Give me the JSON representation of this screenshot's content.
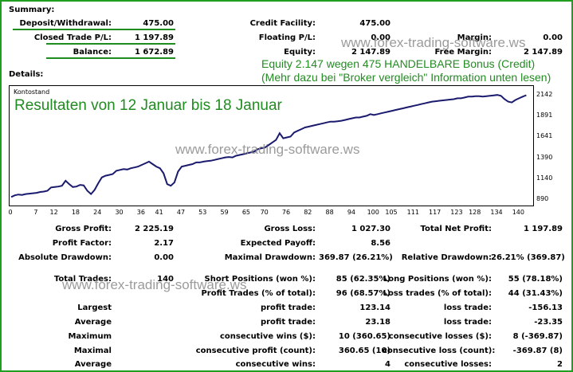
{
  "summary": {
    "title": "Summary:",
    "deposit_label": "Deposit/Withdrawal:",
    "deposit_value": "475.00",
    "closed_pl_label": "Closed Trade P/L:",
    "closed_pl_value": "1 197.89",
    "balance_label": "Balance:",
    "balance_value": "1 672.89",
    "credit_label": "Credit Facility:",
    "credit_value": "475.00",
    "floating_label": "Floating P/L:",
    "floating_value": "0.00",
    "equity_label": "Equity:",
    "equity_value": "2 147.89",
    "margin_label": "Margin:",
    "margin_value": "0.00",
    "free_margin_label": "Free Margin:",
    "free_margin_value": "2 147.89"
  },
  "notes": {
    "line1": "Equity 2.147 wegen 475 HANDELBARE Bonus (Credit)",
    "line2": "(Mehr dazu bei \"Broker vergleich\" Information unten lesen)"
  },
  "watermark": "www.forex-trading-software.ws",
  "details_title": "Details:",
  "chart": {
    "legend": "Kontostand",
    "headline": "Resultaten von 12 Januar bis 18 Januar",
    "line_color": "#1a1a6e"
  },
  "chart_data": {
    "type": "line",
    "series": [
      {
        "name": "Kontostand",
        "x": [
          0,
          1,
          2,
          3,
          4,
          5,
          6,
          7,
          8,
          9,
          10,
          11,
          12,
          13,
          14,
          15,
          16,
          17,
          18,
          19,
          20,
          21,
          22,
          23,
          24,
          25,
          26,
          27,
          28,
          29,
          30,
          31,
          32,
          33,
          34,
          35,
          36,
          37,
          38,
          39,
          40,
          41,
          42,
          43,
          44,
          45,
          46,
          47,
          48,
          49,
          50,
          51,
          52,
          53,
          54,
          55,
          56,
          57,
          58,
          59,
          60,
          61,
          62,
          63,
          64,
          65,
          66,
          67,
          68,
          69,
          70,
          71,
          72,
          73,
          74,
          75,
          76,
          77,
          78,
          79,
          80,
          81,
          82,
          83,
          84,
          85,
          86,
          87,
          88,
          89,
          90,
          91,
          92,
          93,
          94,
          95,
          96,
          97,
          98,
          99,
          100,
          101,
          102,
          103,
          104,
          105,
          106,
          107,
          108,
          109,
          110,
          111,
          112,
          113,
          114,
          115,
          116,
          117,
          118,
          119,
          120,
          121,
          122,
          123,
          124,
          125,
          126,
          127,
          128,
          129,
          130,
          131,
          132,
          133,
          134,
          135,
          136,
          137,
          138,
          139,
          140,
          141,
          142
        ],
        "y": [
          925,
          945,
          955,
          950,
          960,
          965,
          970,
          975,
          985,
          990,
          1000,
          1040,
          1045,
          1050,
          1060,
          1120,
          1080,
          1045,
          1050,
          1070,
          1065,
          1000,
          960,
          1010,
          1090,
          1160,
          1180,
          1190,
          1200,
          1240,
          1250,
          1260,
          1255,
          1270,
          1280,
          1290,
          1310,
          1330,
          1350,
          1320,
          1290,
          1270,
          1210,
          1080,
          1060,
          1100,
          1230,
          1290,
          1300,
          1310,
          1320,
          1340,
          1340,
          1350,
          1355,
          1360,
          1370,
          1380,
          1390,
          1400,
          1405,
          1400,
          1420,
          1430,
          1440,
          1450,
          1460,
          1470,
          1500,
          1510,
          1520,
          1550,
          1580,
          1610,
          1690,
          1630,
          1640,
          1650,
          1700,
          1720,
          1740,
          1760,
          1770,
          1780,
          1790,
          1800,
          1810,
          1820,
          1830,
          1830,
          1835,
          1840,
          1850,
          1860,
          1870,
          1880,
          1880,
          1890,
          1900,
          1920,
          1910,
          1920,
          1930,
          1940,
          1950,
          1960,
          1970,
          1980,
          1990,
          2000,
          2010,
          2020,
          2030,
          2040,
          2050,
          2060,
          2070,
          2075,
          2080,
          2085,
          2090,
          2095,
          2100,
          2110,
          2110,
          2120,
          2130,
          2130,
          2135,
          2135,
          2130,
          2135,
          2140,
          2145,
          2150,
          2140,
          2100,
          2070,
          2060,
          2090,
          2110,
          2130,
          2147
        ]
      }
    ],
    "ylim": [
      880,
      2200
    ],
    "yticks": [
      "2142",
      "1891",
      "1641",
      "1390",
      "1140",
      "890"
    ],
    "xticks": [
      "0",
      "7",
      "12",
      "18",
      "24",
      "30",
      "36",
      "41",
      "47",
      "53",
      "59",
      "65",
      "70",
      "76",
      "82",
      "88",
      "94",
      "100",
      "105",
      "111",
      "117",
      "123",
      "128",
      "134",
      "140"
    ],
    "xlim": [
      0,
      143
    ]
  },
  "stats": {
    "gross_profit_label": "Gross Profit:",
    "gross_profit": "2 225.19",
    "gross_loss_label": "Gross Loss:",
    "gross_loss": "1 027.30",
    "total_net_label": "Total Net Profit:",
    "total_net": "1 197.89",
    "profit_factor_label": "Profit Factor:",
    "profit_factor": "2.17",
    "expected_payoff_label": "Expected Payoff:",
    "expected_payoff": "8.56",
    "abs_drawdown_label": "Absolute Drawdown:",
    "abs_drawdown": "0.00",
    "max_drawdown_label": "Maximal Drawdown:",
    "max_drawdown": "369.87 (26.21%)",
    "rel_drawdown_label": "Relative Drawdown:",
    "rel_drawdown": "26.21% (369.87)",
    "total_trades_label": "Total Trades:",
    "total_trades": "140",
    "short_label": "Short Positions (won %):",
    "short_value": "85 (62.35%)",
    "long_label": "Long Positions (won %):",
    "long_value": "55 (78.18%)",
    "profit_trades_label": "Profit Trades (% of total):",
    "profit_trades": "96 (68.57%)",
    "loss_trades_label": "Loss trades (% of total):",
    "loss_trades": "44 (31.43%)",
    "largest_label": "Largest",
    "largest_profit_label": "profit trade:",
    "largest_profit": "123.14",
    "largest_loss_label": "loss trade:",
    "largest_loss": "-156.13",
    "average_label": "Average",
    "avg_profit_label": "profit trade:",
    "avg_profit": "23.18",
    "avg_loss_label": "loss trade:",
    "avg_loss": "-23.35",
    "maximum_label": "Maximum",
    "max_wins_label": "consecutive wins ($):",
    "max_wins": "10 (360.65)",
    "max_losses_label": "consecutive losses ($):",
    "max_losses": "8 (-369.87)",
    "maximal_label": "Maximal",
    "max_profit_label": "consecutive profit (count):",
    "max_profit": "360.65 (10)",
    "max_loss_label": "consecutive loss (count):",
    "max_loss": "-369.87 (8)",
    "average2_label": "Average",
    "avg_wins_label": "consecutive wins:",
    "avg_wins": "4",
    "avg_losses_label": "consecutive losses:",
    "avg_losses": "2"
  }
}
